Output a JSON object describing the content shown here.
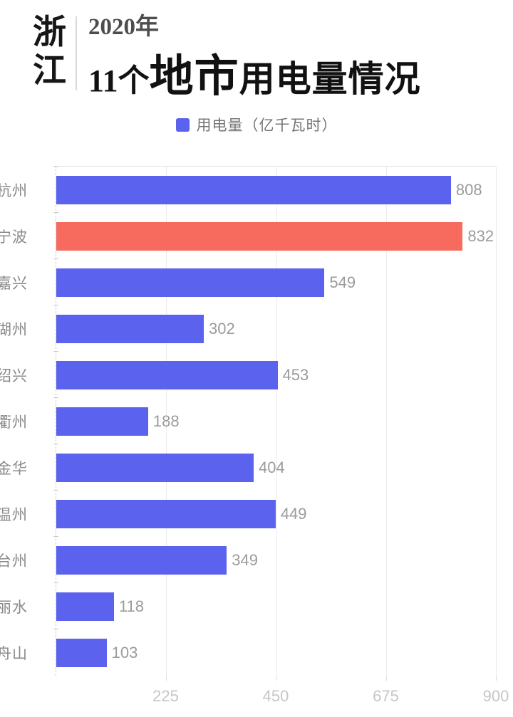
{
  "header": {
    "region": "浙江",
    "year": "2020年",
    "title_prefix": "11个",
    "title_big": "地市",
    "title_suffix": "用电量情况"
  },
  "legend": {
    "label": "用电量（亿千瓦时）"
  },
  "chart_data": {
    "type": "bar",
    "orientation": "horizontal",
    "title": "2020年浙江11个地市用电量情况",
    "series_name": "用电量",
    "unit": "亿千瓦时",
    "categories": [
      "杭州",
      "宁波",
      "嘉兴",
      "湖州",
      "绍兴",
      "衢州",
      "金华",
      "温州",
      "台州",
      "丽水",
      "舟山"
    ],
    "values": [
      808,
      832,
      549,
      302,
      453,
      188,
      404,
      449,
      349,
      118,
      103
    ],
    "highlight_index": 1,
    "bar_color": "#5b62ee",
    "highlight_color": "#f76a5e",
    "label_color": "#9b9b9b",
    "xlim": [
      0,
      900
    ],
    "xticks": [
      225,
      450,
      675,
      900
    ],
    "grid": true,
    "legend_position": "top"
  }
}
